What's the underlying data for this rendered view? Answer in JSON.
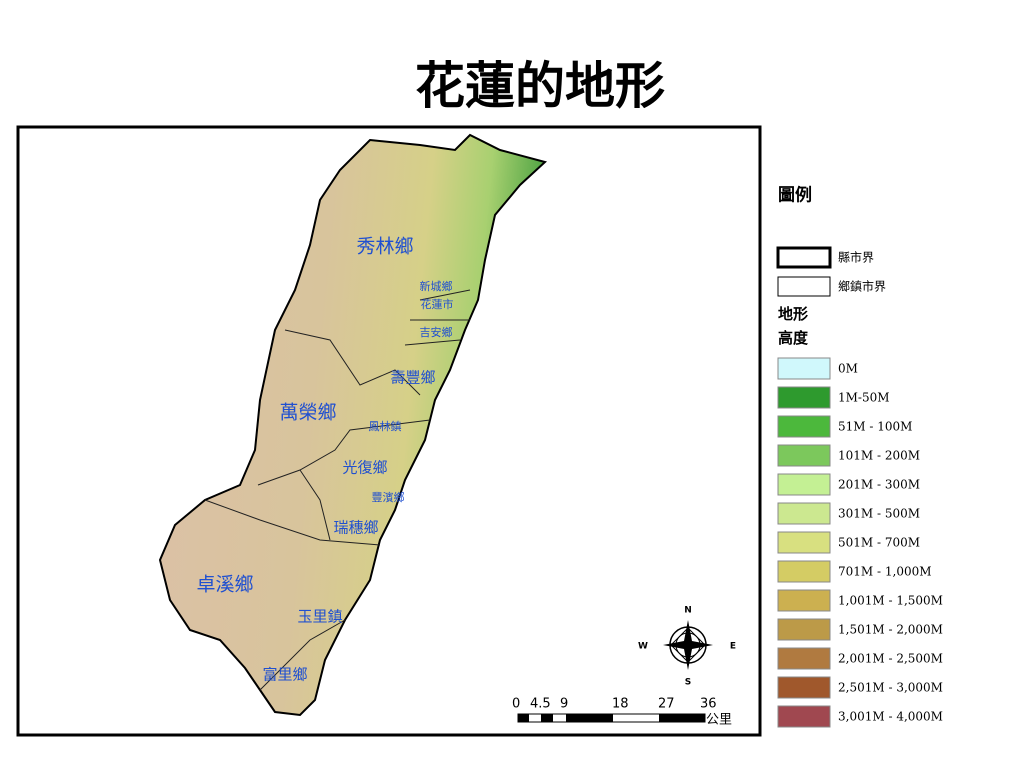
{
  "title": "花蓮的地形",
  "map": {
    "townships": [
      "秀林鄉",
      "新城鄉",
      "花蓮市",
      "吉安鄉",
      "壽豐鄉",
      "萬榮鄉",
      "鳳林鎮",
      "光復鄉",
      "豐濱鄉",
      "瑞穗鄉",
      "卓溪鄉",
      "玉里鎮",
      "富里鄉"
    ],
    "compass": {
      "north": "N",
      "east": "E",
      "south": "S",
      "west": "W"
    },
    "scale_bar": {
      "labels": [
        "0",
        "4.5",
        "9",
        "18",
        "27",
        "36"
      ],
      "unit": "公里"
    }
  },
  "legend": {
    "title": "圖例",
    "boundaries": [
      "縣市界",
      "鄉鎮市界"
    ],
    "terrain_heading": "地形",
    "elevation_heading": "高度",
    "elevations": [
      {
        "label": "0M",
        "color": "#d0f8fc"
      },
      {
        "label": "1M-50M",
        "color": "#2e9a2e"
      },
      {
        "label": "51M - 100M",
        "color": "#4cb83c"
      },
      {
        "label": "101M - 200M",
        "color": "#7cc85c"
      },
      {
        "label": "201M - 300M",
        "color": "#c4f094"
      },
      {
        "label": "301M - 500M",
        "color": "#cce890"
      },
      {
        "label": "501M - 700M",
        "color": "#d8e080"
      },
      {
        "label": "701M - 1,000M",
        "color": "#d4cc64"
      },
      {
        "label": "1,001M - 1,500M",
        "color": "#ccb050"
      },
      {
        "label": "1,501M - 2,000M",
        "color": "#bc9a48"
      },
      {
        "label": "2,001M - 2,500M",
        "color": "#b07a40"
      },
      {
        "label": "2,501M - 3,000M",
        "color": "#a0582c"
      },
      {
        "label": "3,001M - 4,000M",
        "color": "#a04850"
      }
    ]
  }
}
